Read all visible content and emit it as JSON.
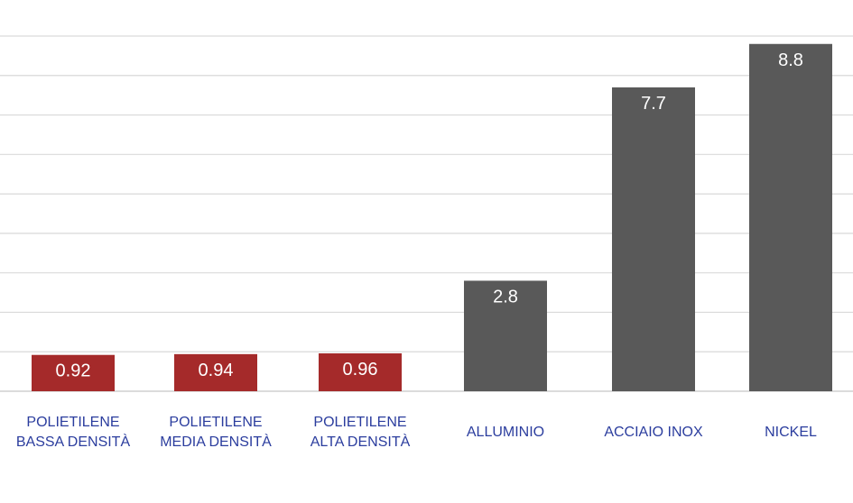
{
  "chart_data": {
    "type": "bar",
    "categories": [
      [
        "POLIETILENE",
        "BASSA DENSITÀ"
      ],
      [
        "POLIETILENE",
        "MEDIA DENSITÀ"
      ],
      [
        "POLIETILENE",
        "ALTA DENSITÀ"
      ],
      [
        "ALLUMINIO"
      ],
      [
        "ACCIAIO INOX"
      ],
      [
        "NICKEL"
      ]
    ],
    "values": [
      0.92,
      0.94,
      0.96,
      2.8,
      7.7,
      8.8
    ],
    "value_labels": [
      "0.92",
      "0.94",
      "0.96",
      "2.8",
      "7.7",
      "8.8"
    ],
    "ylim": [
      0,
      9
    ],
    "grid": true,
    "colors": [
      "#a52a2a",
      "#a52a2a",
      "#a52a2a",
      "#595959",
      "#595959",
      "#595959"
    ],
    "title": "",
    "xlabel": "",
    "ylabel": ""
  }
}
